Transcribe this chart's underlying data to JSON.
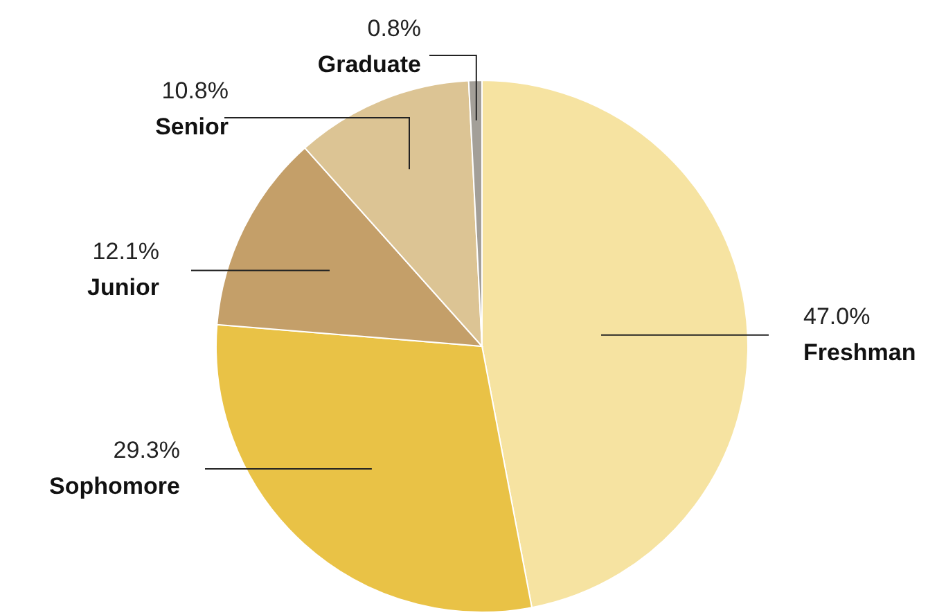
{
  "chart_data": {
    "type": "pie",
    "categories": [
      "Freshman",
      "Sophomore",
      "Junior",
      "Senior",
      "Graduate"
    ],
    "values": [
      47.0,
      29.3,
      12.1,
      10.8,
      0.8
    ],
    "value_labels": [
      "47.0%",
      "29.3%",
      "12.1%",
      "10.8%",
      "0.8%"
    ],
    "colors": [
      "#f6e3a1",
      "#e9c246",
      "#c49f69",
      "#dcc494",
      "#a39f98"
    ]
  }
}
